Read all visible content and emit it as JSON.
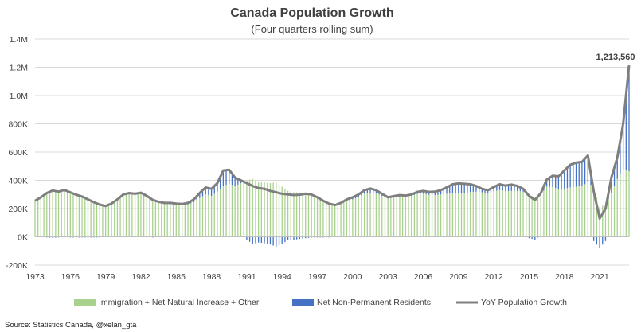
{
  "chart_data": {
    "type": "bar",
    "title": "Canada Population Growth",
    "subtitle": "(Four quarters rolling sum)",
    "source": "Source: Statistics Canada, @xelan_gta",
    "annotation": "1,213,560",
    "ylim": [
      -200000,
      1400000
    ],
    "y_ticks": [
      {
        "value": 1400000,
        "label": "1.4M"
      },
      {
        "value": 1200000,
        "label": "1.2M"
      },
      {
        "value": 1000000,
        "label": "1.0M"
      },
      {
        "value": 800000,
        "label": "800K"
      },
      {
        "value": 600000,
        "label": "600K"
      },
      {
        "value": 400000,
        "label": "400K"
      },
      {
        "value": 200000,
        "label": "200K"
      },
      {
        "value": 0,
        "label": "0K"
      },
      {
        "value": -200000,
        "label": "-200K"
      }
    ],
    "x_ticks": [
      "1973",
      "1976",
      "1979",
      "1982",
      "1985",
      "1988",
      "1991",
      "1994",
      "1997",
      "2000",
      "2003",
      "2006",
      "2009",
      "2012",
      "2015",
      "2018",
      "2021"
    ],
    "x_range": [
      1973.0,
      2023.5
    ],
    "grid": true,
    "legend_position": "bottom",
    "series": [
      {
        "name": "Immigration + Net Natural Increase + Other",
        "kind": "bar",
        "color": "#a9d18e"
      },
      {
        "name": "Net Non-Permanent Residents",
        "kind": "bar",
        "color": "#4472c4"
      },
      {
        "name": "YoY Population Growth",
        "kind": "line",
        "color": "#7f7f7f"
      }
    ],
    "points": [
      {
        "x": 1973.0,
        "total": 255000,
        "npr": 0
      },
      {
        "x": 1973.5,
        "total": 280000,
        "npr": 0
      },
      {
        "x": 1974.0,
        "total": 310000,
        "npr": -5000
      },
      {
        "x": 1974.5,
        "total": 328000,
        "npr": -8000
      },
      {
        "x": 1975.0,
        "total": 320000,
        "npr": -5000
      },
      {
        "x": 1975.5,
        "total": 332000,
        "npr": 0
      },
      {
        "x": 1976.0,
        "total": 315000,
        "npr": -5000
      },
      {
        "x": 1976.5,
        "total": 298000,
        "npr": -5000
      },
      {
        "x": 1977.0,
        "total": 285000,
        "npr": -5000
      },
      {
        "x": 1977.5,
        "total": 265000,
        "npr": -5000
      },
      {
        "x": 1978.0,
        "total": 245000,
        "npr": -5000
      },
      {
        "x": 1978.5,
        "total": 228000,
        "npr": -5000
      },
      {
        "x": 1979.0,
        "total": 218000,
        "npr": 0
      },
      {
        "x": 1979.5,
        "total": 235000,
        "npr": 0
      },
      {
        "x": 1980.0,
        "total": 265000,
        "npr": 0
      },
      {
        "x": 1980.5,
        "total": 300000,
        "npr": 5000
      },
      {
        "x": 1981.0,
        "total": 310000,
        "npr": 10000
      },
      {
        "x": 1981.5,
        "total": 305000,
        "npr": 5000
      },
      {
        "x": 1982.0,
        "total": 312000,
        "npr": 10000
      },
      {
        "x": 1982.5,
        "total": 290000,
        "npr": 0
      },
      {
        "x": 1983.0,
        "total": 262000,
        "npr": -5000
      },
      {
        "x": 1983.5,
        "total": 248000,
        "npr": 0
      },
      {
        "x": 1984.0,
        "total": 240000,
        "npr": 0
      },
      {
        "x": 1984.5,
        "total": 240000,
        "npr": 0
      },
      {
        "x": 1985.0,
        "total": 235000,
        "npr": 0
      },
      {
        "x": 1985.5,
        "total": 232000,
        "npr": 5000
      },
      {
        "x": 1986.0,
        "total": 240000,
        "npr": 10000
      },
      {
        "x": 1986.5,
        "total": 265000,
        "npr": 20000
      },
      {
        "x": 1987.0,
        "total": 310000,
        "npr": 35000
      },
      {
        "x": 1987.5,
        "total": 350000,
        "npr": 50000
      },
      {
        "x": 1988.0,
        "total": 340000,
        "npr": 50000
      },
      {
        "x": 1988.5,
        "total": 380000,
        "npr": 60000
      },
      {
        "x": 1989.0,
        "total": 470000,
        "npr": 110000
      },
      {
        "x": 1989.5,
        "total": 475000,
        "npr": 100000
      },
      {
        "x": 1990.0,
        "total": 420000,
        "npr": 60000
      },
      {
        "x": 1990.5,
        "total": 400000,
        "npr": 20000
      },
      {
        "x": 1991.0,
        "total": 380000,
        "npr": -20000
      },
      {
        "x": 1991.5,
        "total": 360000,
        "npr": -50000
      },
      {
        "x": 1992.0,
        "total": 345000,
        "npr": -40000
      },
      {
        "x": 1992.5,
        "total": 340000,
        "npr": -45000
      },
      {
        "x": 1993.0,
        "total": 325000,
        "npr": -55000
      },
      {
        "x": 1993.5,
        "total": 315000,
        "npr": -70000
      },
      {
        "x": 1994.0,
        "total": 305000,
        "npr": -50000
      },
      {
        "x": 1994.5,
        "total": 300000,
        "npr": -25000
      },
      {
        "x": 1995.0,
        "total": 296000,
        "npr": -20000
      },
      {
        "x": 1995.5,
        "total": 298000,
        "npr": -15000
      },
      {
        "x": 1996.0,
        "total": 305000,
        "npr": -10000
      },
      {
        "x": 1996.5,
        "total": 300000,
        "npr": -5000
      },
      {
        "x": 1997.0,
        "total": 280000,
        "npr": -5000
      },
      {
        "x": 1997.5,
        "total": 255000,
        "npr": -5000
      },
      {
        "x": 1998.0,
        "total": 235000,
        "npr": -5000
      },
      {
        "x": 1998.5,
        "total": 225000,
        "npr": 0
      },
      {
        "x": 1999.0,
        "total": 240000,
        "npr": 5000
      },
      {
        "x": 1999.5,
        "total": 265000,
        "npr": 10000
      },
      {
        "x": 2000.0,
        "total": 280000,
        "npr": 15000
      },
      {
        "x": 2000.5,
        "total": 300000,
        "npr": 20000
      },
      {
        "x": 2001.0,
        "total": 330000,
        "npr": 25000
      },
      {
        "x": 2001.5,
        "total": 342000,
        "npr": 30000
      },
      {
        "x": 2002.0,
        "total": 330000,
        "npr": 20000
      },
      {
        "x": 2002.5,
        "total": 305000,
        "npr": 15000
      },
      {
        "x": 2003.0,
        "total": 280000,
        "npr": 10000
      },
      {
        "x": 2003.5,
        "total": 288000,
        "npr": 10000
      },
      {
        "x": 2004.0,
        "total": 295000,
        "npr": 10000
      },
      {
        "x": 2004.5,
        "total": 292000,
        "npr": 5000
      },
      {
        "x": 2005.0,
        "total": 300000,
        "npr": 10000
      },
      {
        "x": 2005.5,
        "total": 318000,
        "npr": 15000
      },
      {
        "x": 2006.0,
        "total": 325000,
        "npr": 20000
      },
      {
        "x": 2006.5,
        "total": 318000,
        "npr": 20000
      },
      {
        "x": 2007.0,
        "total": 320000,
        "npr": 25000
      },
      {
        "x": 2007.5,
        "total": 330000,
        "npr": 30000
      },
      {
        "x": 2008.0,
        "total": 350000,
        "npr": 45000
      },
      {
        "x": 2008.5,
        "total": 372000,
        "npr": 65000
      },
      {
        "x": 2009.0,
        "total": 378000,
        "npr": 70000
      },
      {
        "x": 2009.5,
        "total": 375000,
        "npr": 65000
      },
      {
        "x": 2010.0,
        "total": 372000,
        "npr": 55000
      },
      {
        "x": 2010.5,
        "total": 360000,
        "npr": 40000
      },
      {
        "x": 2011.0,
        "total": 340000,
        "npr": 25000
      },
      {
        "x": 2011.5,
        "total": 330000,
        "npr": 20000
      },
      {
        "x": 2012.0,
        "total": 352000,
        "npr": 30000
      },
      {
        "x": 2012.5,
        "total": 372000,
        "npr": 40000
      },
      {
        "x": 2013.0,
        "total": 362000,
        "npr": 40000
      },
      {
        "x": 2013.5,
        "total": 370000,
        "npr": 45000
      },
      {
        "x": 2014.0,
        "total": 360000,
        "npr": 35000
      },
      {
        "x": 2014.5,
        "total": 340000,
        "npr": 20000
      },
      {
        "x": 2015.0,
        "total": 290000,
        "npr": -10000
      },
      {
        "x": 2015.5,
        "total": 260000,
        "npr": -20000
      },
      {
        "x": 2016.0,
        "total": 310000,
        "npr": 10000
      },
      {
        "x": 2016.5,
        "total": 405000,
        "npr": 50000
      },
      {
        "x": 2017.0,
        "total": 432000,
        "npr": 80000
      },
      {
        "x": 2017.5,
        "total": 428000,
        "npr": 90000
      },
      {
        "x": 2018.0,
        "total": 470000,
        "npr": 130000
      },
      {
        "x": 2018.5,
        "total": 510000,
        "npr": 160000
      },
      {
        "x": 2019.0,
        "total": 525000,
        "npr": 170000
      },
      {
        "x": 2019.5,
        "total": 530000,
        "npr": 170000
      },
      {
        "x": 2020.0,
        "total": 575000,
        "npr": 190000
      },
      {
        "x": 2020.5,
        "total": 320000,
        "npr": -30000
      },
      {
        "x": 2021.0,
        "total": 130000,
        "npr": -80000
      },
      {
        "x": 2021.5,
        "total": 200000,
        "npr": -30000
      },
      {
        "x": 2022.0,
        "total": 420000,
        "npr": 110000
      },
      {
        "x": 2022.5,
        "total": 560000,
        "npr": 150000
      },
      {
        "x": 2023.0,
        "total": 800000,
        "npr": 320000
      },
      {
        "x": 2023.5,
        "total": 1213560,
        "npr": 750000
      }
    ]
  }
}
